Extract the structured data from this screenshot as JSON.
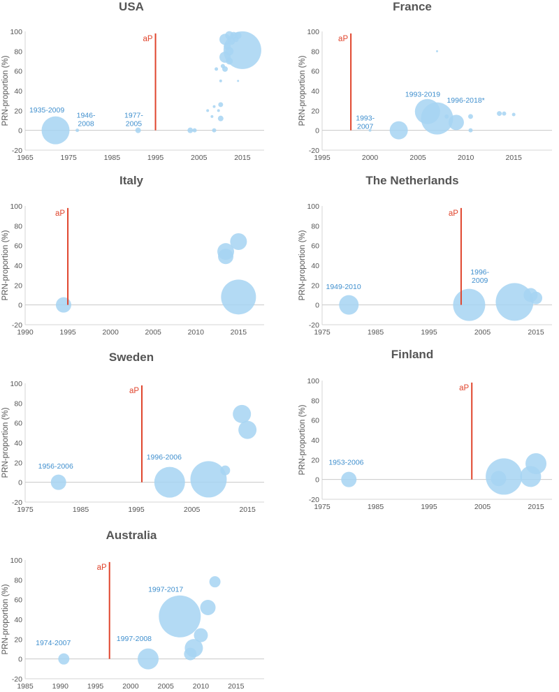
{
  "chart_data": [
    {
      "type": "scatter",
      "title": "USA",
      "ylabel": "PRN-proportion (%)",
      "xlim": [
        1965,
        2020
      ],
      "ylim": [
        -20,
        100
      ],
      "xticks": [
        1965,
        1975,
        1985,
        1995,
        2005,
        2015
      ],
      "yticks": [
        -20,
        0,
        20,
        40,
        60,
        80,
        100
      ],
      "ap": {
        "label": "aP",
        "x": 1995
      },
      "bubbles": [
        {
          "x": 1972,
          "y": 0,
          "r": 20
        },
        {
          "x": 1977,
          "y": 0,
          "r": 2.5
        },
        {
          "x": 1991,
          "y": 0,
          "r": 4
        },
        {
          "x": 2003,
          "y": 0,
          "r": 4
        },
        {
          "x": 2004,
          "y": 0,
          "r": 3
        },
        {
          "x": 2008.5,
          "y": 0,
          "r": 3
        },
        {
          "x": 2007,
          "y": 20,
          "r": 2
        },
        {
          "x": 2008,
          "y": 14,
          "r": 2
        },
        {
          "x": 2008.5,
          "y": 24,
          "r": 2
        },
        {
          "x": 2009,
          "y": 62,
          "r": 2.5
        },
        {
          "x": 2009.5,
          "y": 20,
          "r": 2
        },
        {
          "x": 2010,
          "y": 50,
          "r": 2
        },
        {
          "x": 2010,
          "y": 12,
          "r": 4
        },
        {
          "x": 2010,
          "y": 26,
          "r": 3.5
        },
        {
          "x": 2010.5,
          "y": 65,
          "r": 3
        },
        {
          "x": 2011,
          "y": 62,
          "r": 4
        },
        {
          "x": 2011,
          "y": 74,
          "r": 8
        },
        {
          "x": 2011,
          "y": 92,
          "r": 8
        },
        {
          "x": 2011.5,
          "y": 85,
          "r": 5
        },
        {
          "x": 2012,
          "y": 80,
          "r": 6
        },
        {
          "x": 2012,
          "y": 70,
          "r": 5
        },
        {
          "x": 2012,
          "y": 96,
          "r": 6
        },
        {
          "x": 2012.5,
          "y": 90,
          "r": 5
        },
        {
          "x": 2013,
          "y": 96,
          "r": 5
        },
        {
          "x": 2013.5,
          "y": 92,
          "r": 4
        },
        {
          "x": 2014,
          "y": 96,
          "r": 5
        },
        {
          "x": 2014,
          "y": 50,
          "r": 1.5
        },
        {
          "x": 2015,
          "y": 81,
          "r": 27
        }
      ],
      "annotations": [
        {
          "text": [
            "1935-2009"
          ],
          "x": 1970,
          "y": 18
        },
        {
          "text": [
            "1946-",
            "2008"
          ],
          "x": 1979,
          "y": 13
        },
        {
          "text": [
            "1977-",
            "2005"
          ],
          "x": 1990,
          "y": 13
        }
      ]
    },
    {
      "type": "scatter",
      "title": "France",
      "ylabel": "PRN-proportion (%)",
      "xlim": [
        1995,
        2019
      ],
      "ylim": [
        -20,
        100
      ],
      "xticks": [
        1995,
        2000,
        2005,
        2010,
        2015
      ],
      "yticks": [
        -20,
        0,
        20,
        40,
        60,
        80,
        100
      ],
      "ap": {
        "label": "aP",
        "x": 1998
      },
      "bubbles": [
        {
          "x": 2000,
          "y": 0,
          "r": 2
        },
        {
          "x": 2003,
          "y": 0,
          "r": 13
        },
        {
          "x": 2006,
          "y": 19,
          "r": 18
        },
        {
          "x": 2007,
          "y": 12,
          "r": 23
        },
        {
          "x": 2007,
          "y": 80,
          "r": 1.5
        },
        {
          "x": 2008,
          "y": 14,
          "r": 3
        },
        {
          "x": 2009,
          "y": 8,
          "r": 11
        },
        {
          "x": 2010.5,
          "y": 14,
          "r": 3.5
        },
        {
          "x": 2010.5,
          "y": 0,
          "r": 3
        },
        {
          "x": 2013.5,
          "y": 17,
          "r": 3.5
        },
        {
          "x": 2014,
          "y": 17,
          "r": 3
        },
        {
          "x": 2015,
          "y": 16,
          "r": 2.5
        }
      ],
      "annotations": [
        {
          "text": [
            "1993-",
            "2007"
          ],
          "x": 1999.5,
          "y": 10
        },
        {
          "text": [
            "1993-2019"
          ],
          "x": 2005.5,
          "y": 34
        },
        {
          "text": [
            "1996-2018*"
          ],
          "x": 2010,
          "y": 28
        }
      ]
    },
    {
      "type": "scatter",
      "title": "Italy",
      "ylabel": "PRN-proportion (%)",
      "xlim": [
        1990,
        2018
      ],
      "ylim": [
        -20,
        100
      ],
      "xticks": [
        1990,
        1995,
        2000,
        2005,
        2010,
        2015
      ],
      "yticks": [
        -20,
        0,
        20,
        40,
        60,
        80,
        100
      ],
      "ap": {
        "label": "aP",
        "x": 1995
      },
      "bubbles": [
        {
          "x": 1994.5,
          "y": 0,
          "r": 11
        },
        {
          "x": 2013.5,
          "y": 54,
          "r": 12
        },
        {
          "x": 2013.5,
          "y": 49,
          "r": 11
        },
        {
          "x": 2015,
          "y": 64,
          "r": 12
        },
        {
          "x": 2015,
          "y": 8,
          "r": 25
        }
      ],
      "annotations": []
    },
    {
      "type": "scatter",
      "title": "The Netherlands",
      "ylabel": "PRN-proportion (%)",
      "xlim": [
        1975,
        2018
      ],
      "ylim": [
        -20,
        100
      ],
      "xticks": [
        1975,
        1985,
        1995,
        2005,
        2015
      ],
      "yticks": [
        -20,
        0,
        20,
        40,
        60,
        80,
        100
      ],
      "ap": {
        "label": "aP",
        "x": 2001
      },
      "bubbles": [
        {
          "x": 1980,
          "y": 0,
          "r": 14
        },
        {
          "x": 2002.5,
          "y": 0,
          "r": 23
        },
        {
          "x": 2011,
          "y": 3,
          "r": 27
        },
        {
          "x": 2014,
          "y": 10,
          "r": 10
        },
        {
          "x": 2015,
          "y": 7,
          "r": 9
        }
      ],
      "annotations": [
        {
          "text": [
            "1949-2010"
          ],
          "x": 1979,
          "y": 16
        },
        {
          "text": [
            "1996-",
            "2009"
          ],
          "x": 2004.5,
          "y": 31
        }
      ]
    },
    {
      "type": "scatter",
      "title": "Sweden",
      "ylabel": "PRN-proportion (%)",
      "xlim": [
        1975,
        2018
      ],
      "ylim": [
        -20,
        100
      ],
      "xticks": [
        1975,
        1985,
        1995,
        2005,
        2015
      ],
      "yticks": [
        -20,
        0,
        20,
        40,
        60,
        80,
        100
      ],
      "ap": {
        "label": "aP",
        "x": 1996
      },
      "bubbles": [
        {
          "x": 1981,
          "y": 0,
          "r": 11
        },
        {
          "x": 2001,
          "y": 0,
          "r": 22
        },
        {
          "x": 2008,
          "y": 3,
          "r": 26
        },
        {
          "x": 2011,
          "y": 12,
          "r": 7
        },
        {
          "x": 2014,
          "y": 69,
          "r": 13
        },
        {
          "x": 2015,
          "y": 53,
          "r": 13
        }
      ],
      "annotations": [
        {
          "text": [
            "1956-2006"
          ],
          "x": 1980.5,
          "y": 14
        },
        {
          "text": [
            "1996-2006"
          ],
          "x": 2000,
          "y": 23
        }
      ]
    },
    {
      "type": "scatter",
      "title": "Finland",
      "ylabel": "PRN-proportion (%)",
      "xlim": [
        1975,
        2018
      ],
      "ylim": [
        -20,
        100
      ],
      "xticks": [
        1975,
        1985,
        1995,
        2005,
        2015
      ],
      "yticks": [
        -20,
        0,
        20,
        40,
        60,
        80,
        100
      ],
      "ap": {
        "label": "aP",
        "x": 2003
      },
      "bubbles": [
        {
          "x": 1980,
          "y": 0,
          "r": 11
        },
        {
          "x": 2008,
          "y": 1,
          "r": 11
        },
        {
          "x": 2009,
          "y": 3,
          "r": 26
        },
        {
          "x": 2014,
          "y": 3,
          "r": 15
        },
        {
          "x": 2015,
          "y": 16,
          "r": 15
        }
      ],
      "annotations": [
        {
          "text": [
            "1953-2006"
          ],
          "x": 1979.5,
          "y": 15
        }
      ]
    },
    {
      "type": "scatter",
      "title": "Australia",
      "ylabel": "PRN-proportion (%)",
      "xlim": [
        1985,
        2019
      ],
      "ylim": [
        -20,
        100
      ],
      "xticks": [
        1985,
        1990,
        1995,
        2000,
        2005,
        2010,
        2015
      ],
      "yticks": [
        -20,
        0,
        20,
        40,
        60,
        80,
        100
      ],
      "ap": {
        "label": "aP",
        "x": 1997
      },
      "bubbles": [
        {
          "x": 1990.5,
          "y": 0,
          "r": 8
        },
        {
          "x": 2002.5,
          "y": 0,
          "r": 15
        },
        {
          "x": 2007,
          "y": 43,
          "r": 30
        },
        {
          "x": 2008.5,
          "y": 5,
          "r": 9
        },
        {
          "x": 2009,
          "y": 11,
          "r": 13
        },
        {
          "x": 2010,
          "y": 24,
          "r": 10
        },
        {
          "x": 2011,
          "y": 52,
          "r": 11
        },
        {
          "x": 2012,
          "y": 78,
          "r": 8
        }
      ],
      "annotations": [
        {
          "text": [
            "1974-2007"
          ],
          "x": 1989,
          "y": 14
        },
        {
          "text": [
            "1997-2008"
          ],
          "x": 2000.5,
          "y": 18
        },
        {
          "text": [
            "1997-2017"
          ],
          "x": 2005,
          "y": 68
        }
      ]
    }
  ]
}
